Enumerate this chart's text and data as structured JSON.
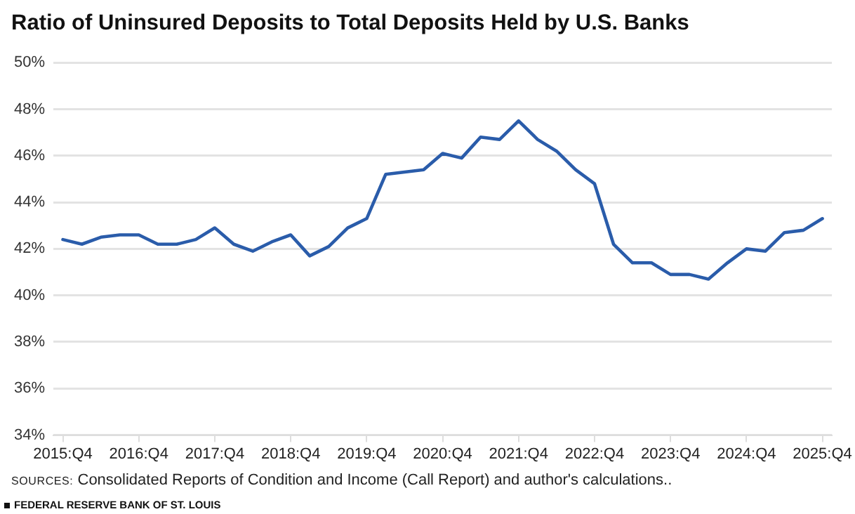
{
  "chart_data": {
    "type": "line",
    "title": "Ratio of Uninsured Deposits to Total Deposits Held by U.S. Banks",
    "categories": [
      "2015:Q4",
      null,
      null,
      null,
      "2016:Q4",
      null,
      null,
      null,
      "2017:Q4",
      null,
      null,
      null,
      "2018:Q4",
      null,
      null,
      null,
      "2019:Q4",
      null,
      null,
      null,
      "2020:Q4",
      null,
      null,
      null,
      "2021:Q4",
      null,
      null,
      null,
      "2022:Q4",
      null,
      null,
      null,
      "2023:Q4",
      null,
      null,
      null,
      "2024:Q4",
      null,
      null,
      null,
      "2025:Q4"
    ],
    "series": [
      {
        "color": "#2a5caa",
        "values": [
          42.4,
          42.2,
          42.5,
          42.6,
          42.6,
          42.2,
          42.2,
          42.4,
          42.9,
          42.2,
          41.9,
          42.3,
          42.6,
          41.7,
          42.1,
          42.9,
          43.3,
          45.2,
          45.3,
          45.4,
          46.1,
          45.9,
          46.8,
          46.7,
          47.5,
          46.7,
          46.2,
          45.4,
          44.8,
          42.2,
          41.4,
          41.4,
          40.9,
          40.9,
          40.7,
          41.4,
          42.0,
          41.9,
          42.7,
          42.8,
          43.3
        ]
      }
    ],
    "ylim": [
      34,
      50
    ],
    "yticks": [
      {
        "value": 34,
        "label": "34%"
      },
      {
        "value": 36,
        "label": "36%"
      },
      {
        "value": 38,
        "label": "38%"
      },
      {
        "value": 40,
        "label": "40%"
      },
      {
        "value": 42,
        "label": "42%"
      },
      {
        "value": 44,
        "label": "44%"
      },
      {
        "value": 46,
        "label": "46%"
      },
      {
        "value": 48,
        "label": "48%"
      },
      {
        "value": 50,
        "label": "50%"
      }
    ],
    "grid": "y",
    "legend": false,
    "marker": "none",
    "line_style": "solid",
    "annotations": [
      "SOURCES: Consolidated Reports of Condition and Income (Call Report) and author's calculations..",
      "FEDERAL RESERVE BANK OF ST. LOUIS"
    ]
  }
}
